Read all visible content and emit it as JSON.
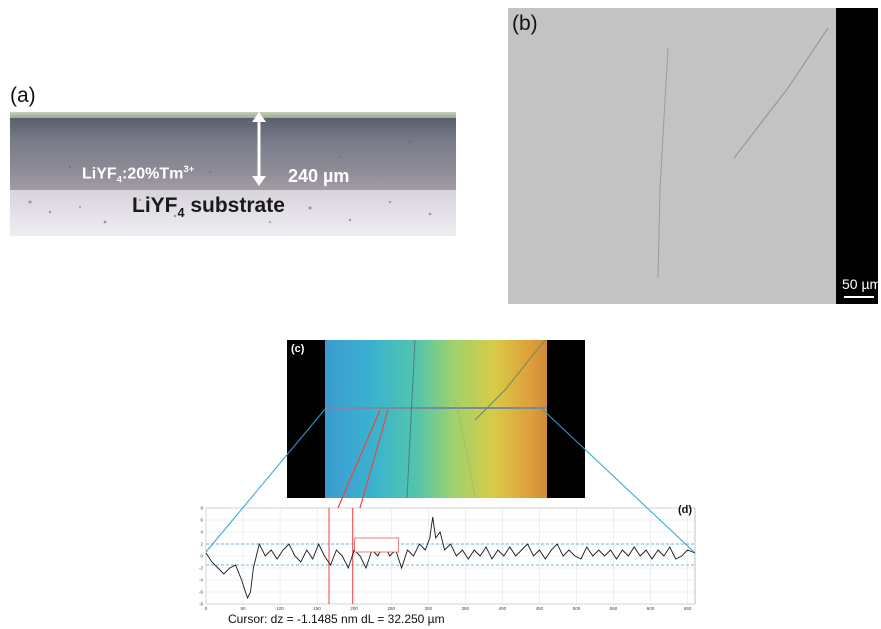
{
  "panel_a": {
    "label": "(a)",
    "film_label": {
      "base": "LiYF",
      "sub": "4",
      "rest": ":20%Tm",
      "sup": "3+"
    },
    "thickness": "240 µm",
    "substrate_label": {
      "base": "LiYF",
      "sub": "4",
      "rest": " substrate"
    }
  },
  "panel_b": {
    "label": "(b)",
    "scale": "50 µm"
  },
  "panel_c": {
    "label": "(c)"
  },
  "panel_d": {
    "label": "(d)",
    "cursor_text": "Cursor: dz = -1.1485 nm  dL = 32.250 µm"
  },
  "chart_data": {
    "type": "line",
    "title": "",
    "xlabel": "",
    "ylabel": "",
    "xlim": [
      0,
      660
    ],
    "ylim": [
      -8,
      8
    ],
    "x_ticks": [
      0,
      50,
      100,
      150,
      200,
      250,
      300,
      350,
      400,
      450,
      500,
      550,
      600,
      650
    ],
    "y_ticks": [
      -8,
      -6,
      -4,
      -2,
      0,
      2,
      4,
      6,
      8
    ],
    "grid": true,
    "reference_lines": [
      2,
      -1.5
    ],
    "cursors": [
      166,
      198
    ],
    "series": [
      {
        "color": "#1a1a1a",
        "x": [
          0,
          8,
          16,
          24,
          32,
          40,
          48,
          52,
          56,
          60,
          64,
          72,
          80,
          88,
          96,
          104,
          112,
          120,
          128,
          136,
          144,
          152,
          160,
          168,
          176,
          184,
          192,
          200,
          208,
          216,
          224,
          232,
          240,
          248,
          256,
          264,
          272,
          280,
          288,
          296,
          302,
          306,
          310,
          316,
          322,
          330,
          338,
          346,
          354,
          362,
          370,
          378,
          386,
          394,
          402,
          410,
          418,
          426,
          434,
          442,
          450,
          458,
          466,
          474,
          482,
          490,
          498,
          506,
          514,
          522,
          530,
          538,
          546,
          554,
          562,
          570,
          578,
          586,
          594,
          602,
          610,
          618,
          626,
          634,
          642,
          650,
          660
        ],
        "y": [
          0.5,
          -1,
          -2,
          -3,
          -2,
          -1.5,
          -4,
          -5.5,
          -7,
          -6,
          -2,
          2,
          0,
          1,
          -0.5,
          1,
          2,
          0,
          -1,
          1,
          -0.5,
          2,
          0,
          -1.5,
          1,
          0,
          -2,
          1,
          0,
          -2,
          1,
          0,
          2,
          0,
          1,
          -2,
          1,
          0,
          2,
          1,
          3,
          6.5,
          3,
          4,
          1,
          2,
          0,
          1,
          -0.5,
          1,
          0,
          1.5,
          -0.5,
          1,
          0,
          1.5,
          0,
          1,
          2,
          0,
          1,
          -0.5,
          1,
          2,
          0,
          1,
          0,
          -0.5,
          1.5,
          0,
          1,
          0,
          1,
          -0.5,
          1,
          0,
          1.5,
          0,
          1,
          -0.5,
          1,
          0,
          1.5,
          -0.5,
          0,
          1,
          0.5
        ]
      }
    ]
  }
}
